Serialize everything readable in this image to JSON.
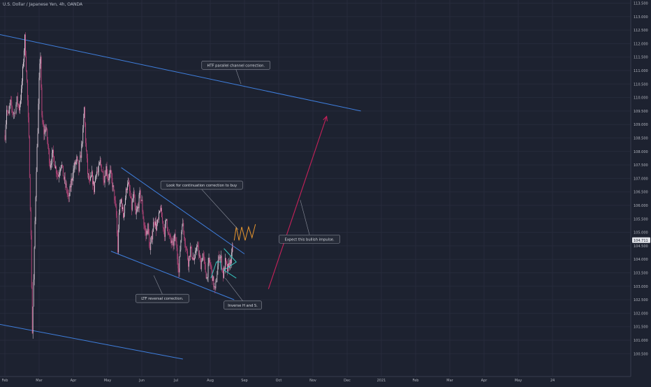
{
  "header": {
    "symbol_title": "U.S. Dollar / Japanese Yen, 4h, OANDA"
  },
  "colors": {
    "background": "#1d2230",
    "candle_up": "#e9d7e4",
    "candle_down": "#d34a86",
    "trendline": "#3f7fde",
    "triangle": "#35c8c0",
    "projection": "#e8962e",
    "impulse_arrow": "#c8215a",
    "price_marker": "#e2e4ea"
  },
  "chart_data": {
    "type": "candlestick",
    "symbol": "U.S. Dollar / Japanese Yen",
    "timeframe": "4h",
    "source": "OANDA",
    "x_ticks": [
      "Feb",
      "Mar",
      "Apr",
      "May",
      "Jun",
      "Jul",
      "Aug",
      "Sep",
      "Oct",
      "Nov",
      "Dec",
      "2021",
      "Feb",
      "Mar",
      "Apr",
      "May",
      "24"
    ],
    "y_ticks": [
      "113.500",
      "113.000",
      "112.500",
      "112.000",
      "111.500",
      "111.000",
      "110.500",
      "110.000",
      "109.500",
      "109.000",
      "108.500",
      "108.000",
      "107.500",
      "107.000",
      "106.500",
      "106.000",
      "105.500",
      "105.000",
      "104.500",
      "104.000",
      "103.500",
      "103.000",
      "102.500",
      "102.000",
      "101.500",
      "101.000",
      "100.500"
    ],
    "ylim": [
      100.0,
      113.75
    ],
    "last_price": "104.711",
    "price_path": [
      {
        "t": 0,
        "p": 108.6
      },
      {
        "t": 0.5,
        "p": 109.6
      },
      {
        "t": 1,
        "p": 109.3
      },
      {
        "t": 1.6,
        "p": 109.8
      },
      {
        "t": 2.2,
        "p": 109.5
      },
      {
        "t": 2.8,
        "p": 109.4
      },
      {
        "t": 3.5,
        "p": 109.9
      },
      {
        "t": 4.2,
        "p": 109.6
      },
      {
        "t": 4.8,
        "p": 110.2
      },
      {
        "t": 5.4,
        "p": 111.4
      },
      {
        "t": 5.8,
        "p": 112.2
      },
      {
        "t": 6.4,
        "p": 110.6
      },
      {
        "t": 7.0,
        "p": 108.4
      },
      {
        "t": 7.6,
        "p": 104.8
      },
      {
        "t": 8.0,
        "p": 101.3
      },
      {
        "t": 8.4,
        "p": 103.2
      },
      {
        "t": 8.8,
        "p": 105.4
      },
      {
        "t": 9.2,
        "p": 107.4
      },
      {
        "t": 9.6,
        "p": 108.8
      },
      {
        "t": 10.0,
        "p": 110.6
      },
      {
        "t": 10.4,
        "p": 111.6
      },
      {
        "t": 10.8,
        "p": 109.2
      },
      {
        "t": 11.4,
        "p": 108.7
      },
      {
        "t": 12.0,
        "p": 108.9
      },
      {
        "t": 12.6,
        "p": 108.2
      },
      {
        "t": 13.2,
        "p": 107.5
      },
      {
        "t": 14.0,
        "p": 107.9
      },
      {
        "t": 14.8,
        "p": 107.4
      },
      {
        "t": 15.6,
        "p": 107.1
      },
      {
        "t": 16.4,
        "p": 107.6
      },
      {
        "t": 17.2,
        "p": 107.0
      },
      {
        "t": 18.0,
        "p": 106.6
      },
      {
        "t": 18.6,
        "p": 106.2
      },
      {
        "t": 19.4,
        "p": 106.9
      },
      {
        "t": 20.2,
        "p": 107.4
      },
      {
        "t": 21.0,
        "p": 107.7
      },
      {
        "t": 21.6,
        "p": 107.3
      },
      {
        "t": 22.2,
        "p": 107.9
      },
      {
        "t": 22.8,
        "p": 108.7
      },
      {
        "t": 23.2,
        "p": 109.6
      },
      {
        "t": 23.6,
        "p": 108.4
      },
      {
        "t": 24.2,
        "p": 107.2
      },
      {
        "t": 24.8,
        "p": 106.8
      },
      {
        "t": 25.4,
        "p": 107.1
      },
      {
        "t": 26.0,
        "p": 106.6
      },
      {
        "t": 26.6,
        "p": 107.3
      },
      {
        "t": 27.2,
        "p": 107.2
      },
      {
        "t": 27.8,
        "p": 107.6
      },
      {
        "t": 28.4,
        "p": 107.3
      },
      {
        "t": 29.0,
        "p": 107.0
      },
      {
        "t": 29.6,
        "p": 107.4
      },
      {
        "t": 30.2,
        "p": 107.0
      },
      {
        "t": 30.8,
        "p": 107.2
      },
      {
        "t": 31.4,
        "p": 106.8
      },
      {
        "t": 32.0,
        "p": 106.3
      },
      {
        "t": 32.6,
        "p": 105.6
      },
      {
        "t": 33.0,
        "p": 104.3
      },
      {
        "t": 33.4,
        "p": 105.8
      },
      {
        "t": 34.0,
        "p": 106.2
      },
      {
        "t": 34.6,
        "p": 105.6
      },
      {
        "t": 35.2,
        "p": 106.3
      },
      {
        "t": 35.8,
        "p": 106.9
      },
      {
        "t": 36.4,
        "p": 106.5
      },
      {
        "t": 37.0,
        "p": 105.9
      },
      {
        "t": 37.6,
        "p": 106.4
      },
      {
        "t": 38.2,
        "p": 105.6
      },
      {
        "t": 38.8,
        "p": 105.9
      },
      {
        "t": 39.4,
        "p": 106.4
      },
      {
        "t": 40.0,
        "p": 106.1
      },
      {
        "t": 40.6,
        "p": 105.3
      },
      {
        "t": 41.2,
        "p": 104.9
      },
      {
        "t": 41.8,
        "p": 105.2
      },
      {
        "t": 42.4,
        "p": 104.3
      },
      {
        "t": 43.0,
        "p": 104.9
      },
      {
        "t": 43.6,
        "p": 105.5
      },
      {
        "t": 44.2,
        "p": 105.2
      },
      {
        "t": 44.8,
        "p": 105.4
      },
      {
        "t": 45.4,
        "p": 105.9
      },
      {
        "t": 46.0,
        "p": 105.4
      },
      {
        "t": 46.6,
        "p": 105.0
      },
      {
        "t": 47.2,
        "p": 105.5
      },
      {
        "t": 47.8,
        "p": 104.9
      },
      {
        "t": 48.4,
        "p": 104.7
      },
      {
        "t": 49.0,
        "p": 104.5
      },
      {
        "t": 49.6,
        "p": 104.8
      },
      {
        "t": 50.2,
        "p": 104.5
      },
      {
        "t": 50.8,
        "p": 103.5
      },
      {
        "t": 51.2,
        "p": 104.4
      },
      {
        "t": 51.8,
        "p": 105.4
      },
      {
        "t": 52.4,
        "p": 104.9
      },
      {
        "t": 53.0,
        "p": 104.4
      },
      {
        "t": 53.6,
        "p": 103.9
      },
      {
        "t": 54.2,
        "p": 104.4
      },
      {
        "t": 54.8,
        "p": 104.1
      },
      {
        "t": 55.4,
        "p": 103.9
      },
      {
        "t": 56.0,
        "p": 104.6
      },
      {
        "t": 56.6,
        "p": 104.2
      },
      {
        "t": 57.2,
        "p": 103.8
      },
      {
        "t": 57.8,
        "p": 104.2
      },
      {
        "t": 58.4,
        "p": 103.7
      },
      {
        "t": 59.0,
        "p": 103.3
      },
      {
        "t": 59.6,
        "p": 103.9
      },
      {
        "t": 60.2,
        "p": 103.7
      },
      {
        "t": 60.8,
        "p": 103.2
      },
      {
        "t": 61.4,
        "p": 102.8
      },
      {
        "t": 62.0,
        "p": 103.5
      },
      {
        "t": 62.6,
        "p": 104.2
      },
      {
        "t": 63.2,
        "p": 104.0
      },
      {
        "t": 63.8,
        "p": 103.4
      },
      {
        "t": 64.4,
        "p": 103.9
      },
      {
        "t": 65.0,
        "p": 103.6
      },
      {
        "t": 65.6,
        "p": 103.8
      },
      {
        "t": 66.2,
        "p": 104.1
      },
      {
        "t": 66.8,
        "p": 104.7
      }
    ],
    "drawings": [
      {
        "type": "trendline",
        "name": "htf-channel-upper",
        "points": [
          {
            "t": -2.0,
            "p": 112.35
          },
          {
            "t": 104.0,
            "p": 109.5
          }
        ]
      },
      {
        "type": "trendline",
        "name": "htf-channel-lower",
        "points": [
          {
            "t": -2.0,
            "p": 101.6
          },
          {
            "t": 52.0,
            "p": 100.3
          }
        ]
      },
      {
        "type": "trendline",
        "name": "ltf-wedge-upper",
        "points": [
          {
            "t": 34.0,
            "p": 107.4
          },
          {
            "t": 70.0,
            "p": 104.2
          }
        ]
      },
      {
        "type": "trendline",
        "name": "ltf-wedge-lower",
        "points": [
          {
            "t": 31.0,
            "p": 104.3
          },
          {
            "t": 67.0,
            "p": 102.5
          }
        ]
      },
      {
        "type": "polyline",
        "name": "triangle-left",
        "color": "triangle",
        "points": [
          {
            "t": 60.2,
            "p": 103.3
          },
          {
            "t": 61.8,
            "p": 103.9
          },
          {
            "t": 63.0,
            "p": 103.9
          },
          {
            "t": 63.2,
            "p": 103.6
          }
        ]
      },
      {
        "type": "polyline",
        "name": "triangle-right",
        "color": "triangle",
        "points": [
          {
            "t": 64.0,
            "p": 104.4
          },
          {
            "t": 67.6,
            "p": 103.9
          },
          {
            "t": 64.0,
            "p": 103.6
          },
          {
            "t": 67.6,
            "p": 103.3
          }
        ]
      },
      {
        "type": "polyline",
        "name": "wave-projection",
        "color": "projection",
        "points": [
          {
            "t": 67.0,
            "p": 104.7
          },
          {
            "t": 67.6,
            "p": 105.2
          },
          {
            "t": 68.4,
            "p": 104.7
          },
          {
            "t": 69.2,
            "p": 105.2
          },
          {
            "t": 70.2,
            "p": 104.7
          },
          {
            "t": 71.2,
            "p": 105.2
          },
          {
            "t": 72.2,
            "p": 104.8
          },
          {
            "t": 73.2,
            "p": 105.3
          }
        ]
      },
      {
        "type": "arrow",
        "name": "impulse-arrow",
        "color": "impulse_arrow",
        "points": [
          {
            "t": 77.0,
            "p": 102.9
          },
          {
            "t": 94.0,
            "p": 109.3
          }
        ]
      }
    ],
    "annotations": [
      {
        "name": "htf-channel-callout",
        "text": "HTF parallel channel correction.",
        "box": {
          "t": 67.5,
          "p": 111.2
        },
        "target": {
          "t": 69.0,
          "p": 110.5
        }
      },
      {
        "name": "continuation-callout",
        "text": "Look for continuation correction to buy",
        "box": {
          "t": 57.5,
          "p": 106.75
        },
        "target": {
          "t": 68.2,
          "p": 105.1
        }
      },
      {
        "name": "impulse-callout",
        "text": "Expect this bullish impulse.",
        "box": {
          "t": 89.0,
          "p": 104.75
        },
        "target": {
          "t": 86.3,
          "p": 106.2
        }
      },
      {
        "name": "ltf-reversal-callout",
        "text": "LTF reversal correction.",
        "box": {
          "t": 46.0,
          "p": 102.55
        },
        "target": {
          "t": 43.5,
          "p": 103.4
        }
      },
      {
        "name": "inverse-hs-callout",
        "text": "Inverse H and S.",
        "box": {
          "t": 69.5,
          "p": 102.3
        },
        "target": {
          "t": 64.4,
          "p": 103.3
        }
      }
    ]
  }
}
